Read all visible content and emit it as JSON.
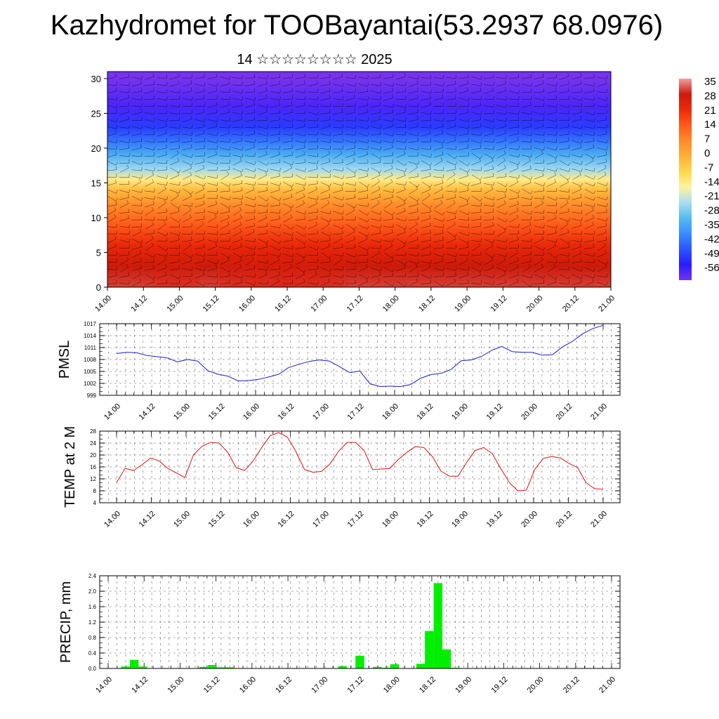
{
  "header": {
    "title": "Kazhydromet for TOOBayantai(53.2937 68.0976)",
    "subtitle": "14 ☆☆☆☆☆☆☆☆ 2025"
  },
  "colors": {
    "pmsl_line": "#1a1acc",
    "temp_line": "#dd1111",
    "precip_bar": "#00ee00",
    "colorbar": [
      "#7733ee",
      "#2a1aff",
      "#2a55ff",
      "#3a8cff",
      "#55bbee",
      "#aaddf0",
      "#fff3a0",
      "#ffd84a",
      "#ffb03a",
      "#ff8a2a",
      "#ff5a1a",
      "#ee2a0a",
      "#cc1a0a",
      "#f0a0a0"
    ]
  },
  "chart_data": [
    {
      "type": "heatmap",
      "title": "",
      "xlabel": "",
      "ylabel": "",
      "x_ticks": [
        "14.00",
        "14.12",
        "15.00",
        "15.12",
        "16.00",
        "16.12",
        "17.00",
        "17.12",
        "18.00",
        "18.12",
        "19.00",
        "19.12",
        "20.00",
        "20.12",
        "21.00"
      ],
      "y_ticks": [
        "0",
        "5",
        "10",
        "15",
        "20",
        "25",
        "30"
      ],
      "ylim": [
        0,
        31
      ],
      "colorbar_labels": [
        "35",
        "28",
        "21",
        "14",
        "7",
        "0",
        "-7",
        "-14",
        "-21",
        "-28",
        "-35",
        "-42",
        "-49",
        "-56"
      ],
      "profile": [
        {
          "level": 0,
          "value": 30
        },
        {
          "level": 3,
          "value": 28
        },
        {
          "level": 6,
          "value": 22
        },
        {
          "level": 9,
          "value": 14
        },
        {
          "level": 12,
          "value": 6
        },
        {
          "level": 14,
          "value": -2
        },
        {
          "level": 15.5,
          "value": -12
        },
        {
          "level": 17,
          "value": -22
        },
        {
          "level": 19,
          "value": -30
        },
        {
          "level": 21,
          "value": -38
        },
        {
          "level": 23,
          "value": -45
        },
        {
          "level": 26,
          "value": -52
        },
        {
          "level": 30,
          "value": -56
        }
      ],
      "warm_cores_x": [
        1.9,
        3.7,
        4.6,
        5.2,
        6.0
      ],
      "wind_barbs": true
    },
    {
      "type": "line",
      "ylabel": "PMSL",
      "ylim": [
        999,
        1017
      ],
      "y_ticks": [
        999,
        1002,
        1005,
        1008,
        1011,
        1014,
        1017
      ],
      "x_ticks": [
        "14.00",
        "14.12",
        "15.00",
        "15.12",
        "16.00",
        "16.12",
        "17.00",
        "17.12",
        "18.00",
        "18.12",
        "19.00",
        "19.12",
        "20.00",
        "20.12",
        "21.00"
      ],
      "series": [
        {
          "values": [
            1009.5,
            1009.8,
            1009.7,
            1009.0,
            1008.7,
            1008.4,
            1007.4,
            1008.0,
            1007.6,
            1005.2,
            1004.3,
            1003.8,
            1002.6,
            1002.7,
            1003.0,
            1003.6,
            1004.3,
            1006.0,
            1006.8,
            1007.5,
            1007.9,
            1007.6,
            1006.2,
            1004.7,
            1005.1,
            1001.9,
            1001.2,
            1001.3,
            1001.2,
            1001.7,
            1003.3,
            1004.2,
            1004.5,
            1005.5,
            1007.7,
            1007.9,
            1008.8,
            1010.3,
            1011.3,
            1010.0,
            1009.8,
            1009.8,
            1009.1,
            1009.2,
            1011.2,
            1012.6,
            1014.5,
            1015.8,
            1016.6
          ]
        }
      ]
    },
    {
      "type": "line",
      "ylabel": "TEMP at 2 M",
      "ylim": [
        4,
        28
      ],
      "y_ticks": [
        4,
        8,
        12,
        16,
        20,
        24,
        28
      ],
      "x_ticks": [
        "14.00",
        "14.12",
        "15.00",
        "15.12",
        "16.00",
        "16.12",
        "17.00",
        "17.12",
        "18.00",
        "18.12",
        "19.00",
        "19.12",
        "20.00",
        "20.12",
        "21.00"
      ],
      "series": [
        {
          "values": [
            10.8,
            15.5,
            14.8,
            16.8,
            19.0,
            18.0,
            15.5,
            14.0,
            12.4,
            20.0,
            22.9,
            24.2,
            24.0,
            21.0,
            15.8,
            14.8,
            18.0,
            22.5,
            26.5,
            27.5,
            26.0,
            21.2,
            15.2,
            14.2,
            14.5,
            17.0,
            21.2,
            24.2,
            24.2,
            21.5,
            15.1,
            15.3,
            15.5,
            18.5,
            20.9,
            22.8,
            22.5,
            19.5,
            14.6,
            12.9,
            12.9,
            17.5,
            21.5,
            22.5,
            20.5,
            15.5,
            10.8,
            8.0,
            8.2,
            15.2,
            18.9,
            19.5,
            19.0,
            17.2,
            15.8,
            10.7,
            8.7,
            8.5
          ]
        }
      ]
    },
    {
      "type": "bar",
      "ylabel": "PRECIP, mm",
      "ylim": [
        0,
        2.4
      ],
      "y_ticks": [
        "0.0",
        "0.4",
        "0.8",
        "1.2",
        "1.6",
        "2.0",
        "2.4"
      ],
      "x_ticks": [
        "14.00",
        "14.12",
        "15.00",
        "15.12",
        "16.00",
        "16.12",
        "17.00",
        "17.12",
        "18.00",
        "18.12",
        "19.00",
        "19.12",
        "20.00",
        "20.12",
        "21.00"
      ],
      "series": [
        {
          "values": [
            0,
            0,
            0.05,
            0.22,
            0.05,
            0,
            0,
            0,
            0,
            0,
            0,
            0.04,
            0.09,
            0.03,
            0.03,
            0,
            0,
            0,
            0,
            0,
            0,
            0,
            0,
            0,
            0,
            0,
            0,
            0.06,
            0,
            0.33,
            0,
            0.04,
            0.02,
            0.11,
            0,
            0,
            0.12,
            0.97,
            2.21,
            0.49,
            0.02,
            0,
            0,
            0,
            0,
            0,
            0,
            0,
            0,
            0,
            0,
            0,
            0,
            0,
            0,
            0,
            0,
            0,
            0
          ]
        }
      ]
    }
  ]
}
